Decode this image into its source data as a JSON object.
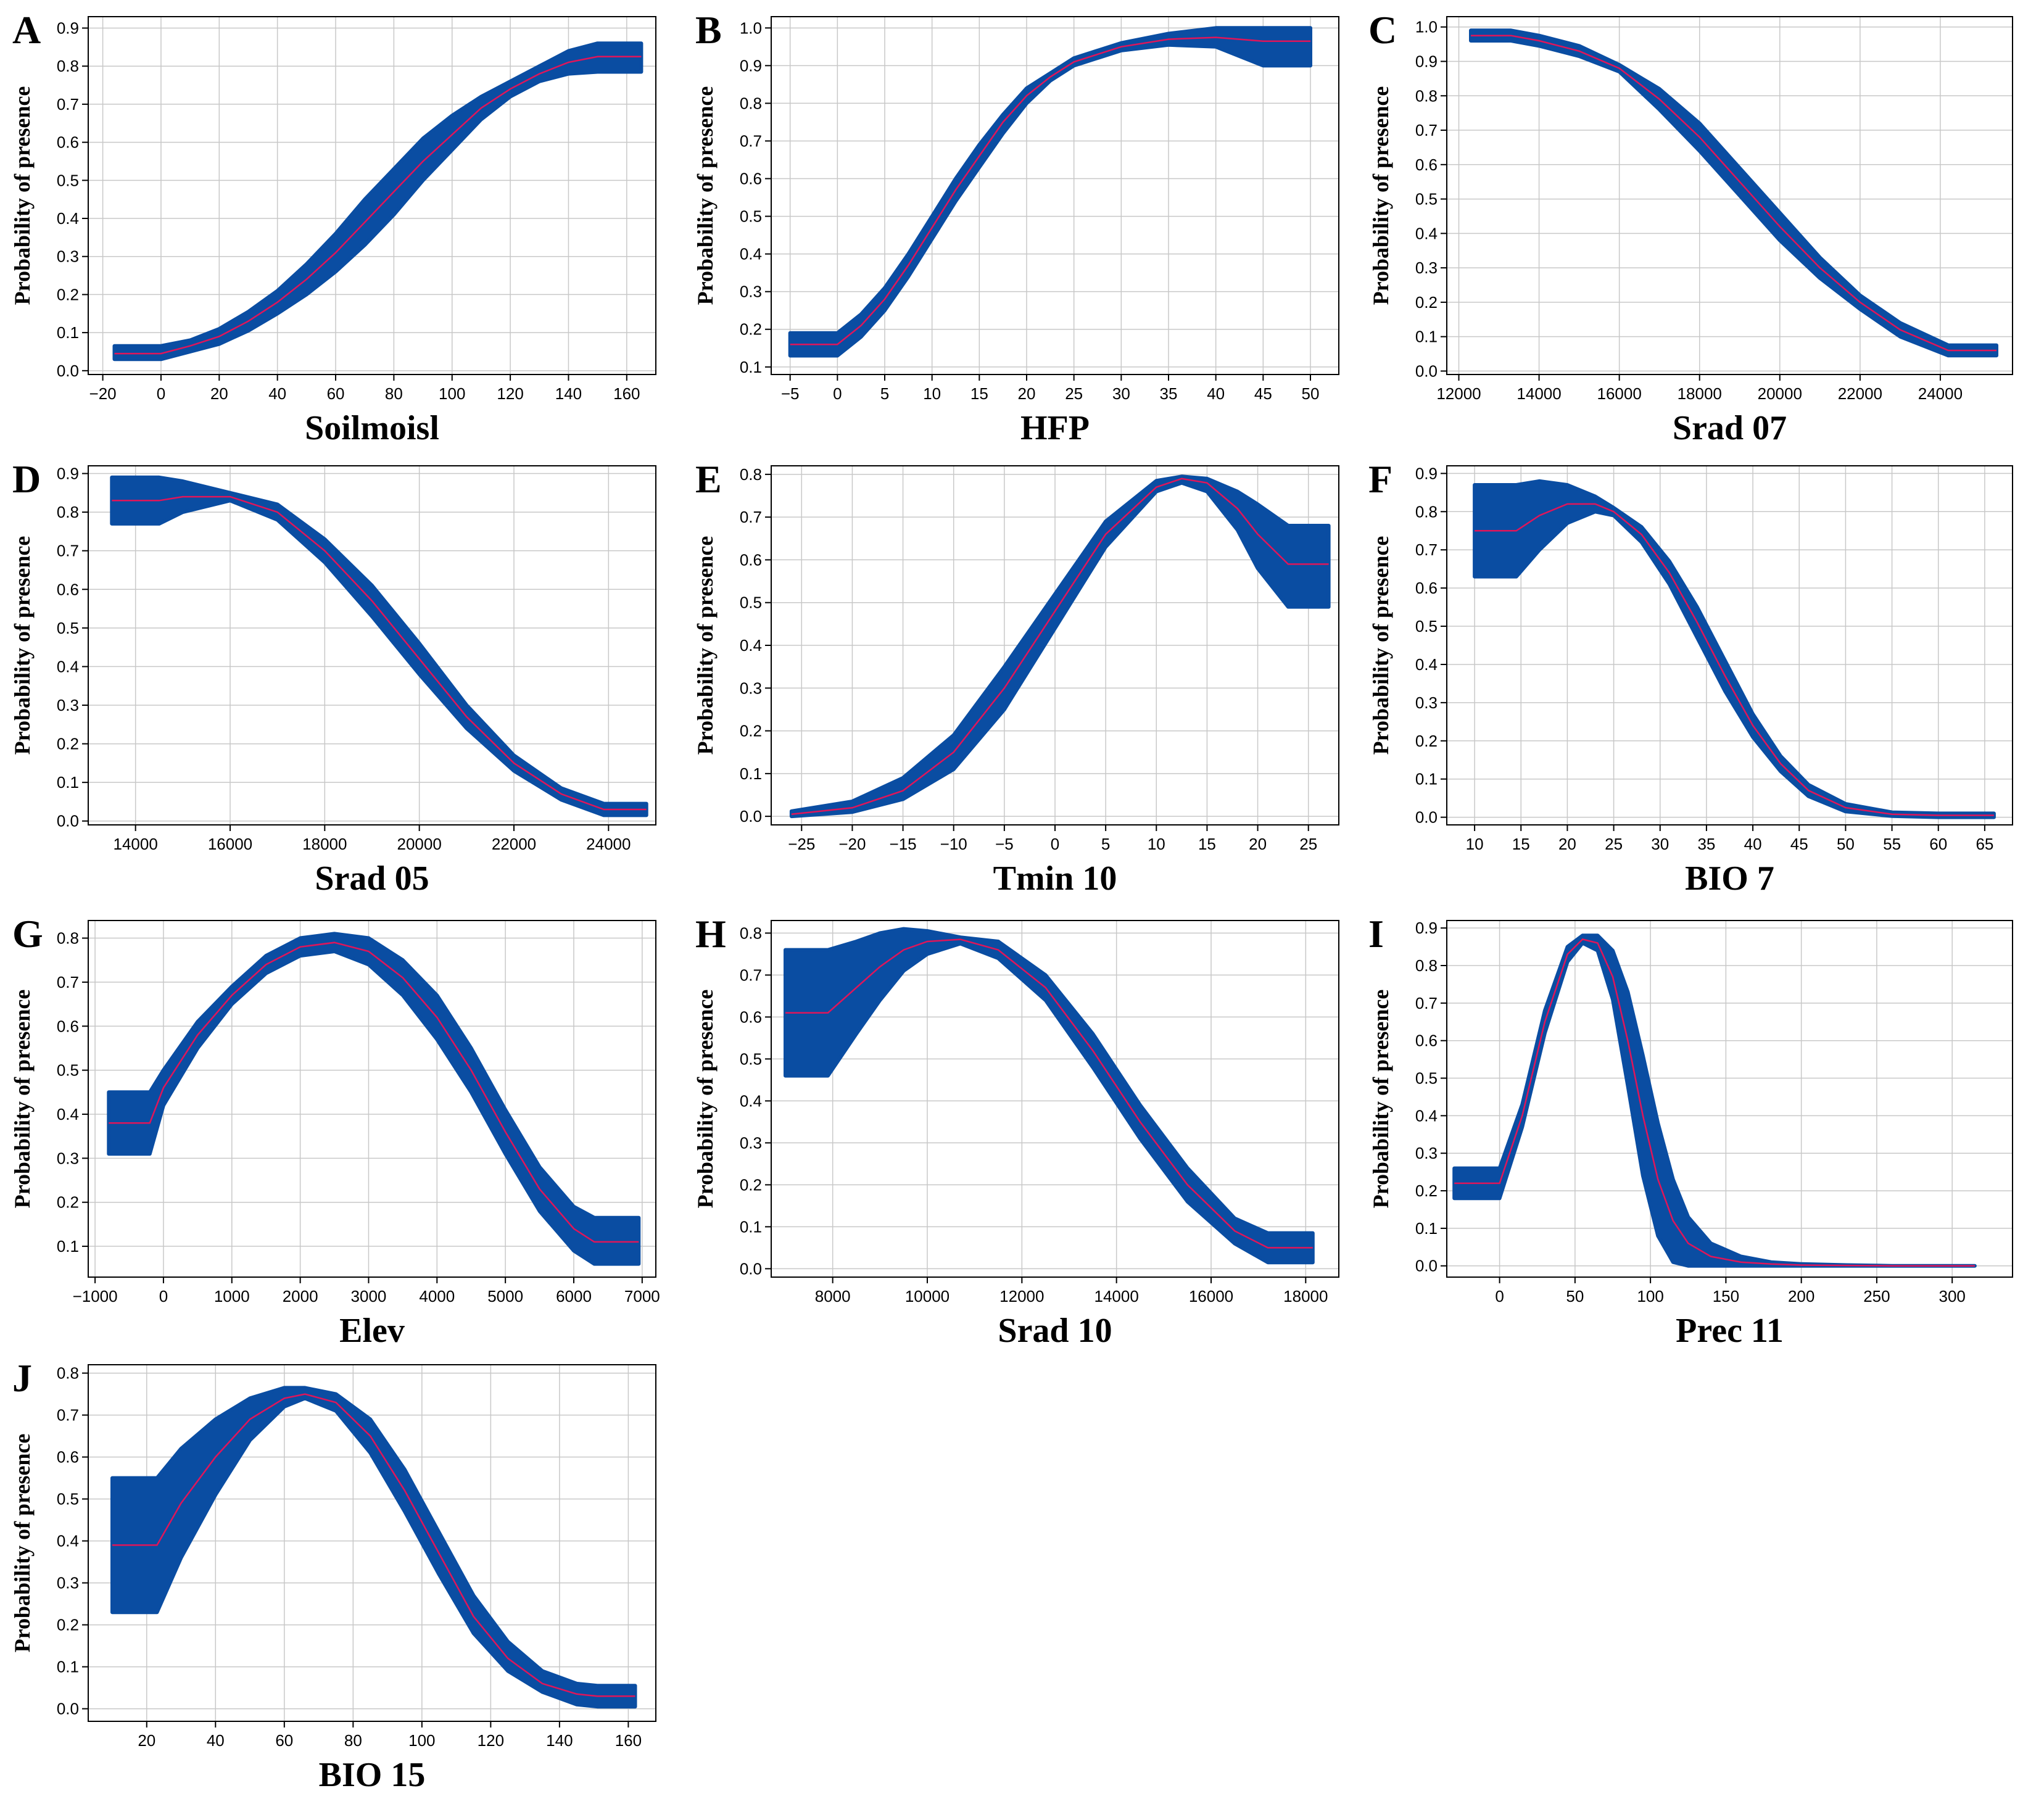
{
  "figure": {
    "band_color": "#0a4da2",
    "line_color": "#e0155a",
    "grid": true
  },
  "chart_data": [
    {
      "panel": "A",
      "type": "area",
      "xlabel": "Soilmoisl",
      "ylabel": "Probability of presence",
      "xlim": [
        -25,
        170
      ],
      "ylim": [
        -0.01,
        0.93
      ],
      "xticks": [
        -20,
        0,
        20,
        40,
        60,
        80,
        100,
        120,
        140,
        160
      ],
      "yticks": [
        0.0,
        0.1,
        0.2,
        0.3,
        0.4,
        0.5,
        0.6,
        0.7,
        0.8,
        0.9
      ],
      "ytick_decimals": 1,
      "x": [
        -16,
        0,
        10,
        20,
        30,
        40,
        50,
        60,
        70,
        80,
        90,
        100,
        110,
        120,
        130,
        140,
        150,
        165
      ],
      "mean": [
        0.045,
        0.045,
        0.065,
        0.09,
        0.13,
        0.18,
        0.24,
        0.31,
        0.39,
        0.47,
        0.55,
        0.62,
        0.69,
        0.74,
        0.78,
        0.81,
        0.825,
        0.825
      ],
      "lower": [
        0.03,
        0.03,
        0.05,
        0.07,
        0.105,
        0.15,
        0.2,
        0.26,
        0.33,
        0.41,
        0.5,
        0.58,
        0.66,
        0.72,
        0.76,
        0.78,
        0.785,
        0.785
      ],
      "upper": [
        0.065,
        0.065,
        0.08,
        0.11,
        0.155,
        0.21,
        0.28,
        0.36,
        0.45,
        0.53,
        0.61,
        0.67,
        0.72,
        0.76,
        0.8,
        0.84,
        0.86,
        0.86
      ]
    },
    {
      "panel": "B",
      "type": "area",
      "xlabel": "HFP",
      "ylabel": "Probability of presence",
      "xlim": [
        -7,
        53
      ],
      "ylim": [
        0.08,
        1.03
      ],
      "xticks": [
        -5,
        0,
        5,
        10,
        15,
        20,
        25,
        30,
        35,
        40,
        45,
        50
      ],
      "yticks": [
        0.1,
        0.2,
        0.3,
        0.4,
        0.5,
        0.6,
        0.7,
        0.8,
        0.9,
        1.0
      ],
      "ytick_decimals": 1,
      "x": [
        -5,
        0,
        2.5,
        5,
        7.5,
        10,
        12.5,
        15,
        17.5,
        20,
        22.5,
        25,
        30,
        35,
        40,
        45,
        50
      ],
      "mean": [
        0.16,
        0.16,
        0.21,
        0.28,
        0.37,
        0.47,
        0.57,
        0.66,
        0.75,
        0.82,
        0.87,
        0.91,
        0.95,
        0.97,
        0.975,
        0.965,
        0.965
      ],
      "lower": [
        0.13,
        0.13,
        0.18,
        0.25,
        0.34,
        0.44,
        0.54,
        0.63,
        0.72,
        0.8,
        0.86,
        0.9,
        0.94,
        0.955,
        0.95,
        0.9,
        0.9
      ],
      "upper": [
        0.19,
        0.19,
        0.24,
        0.31,
        0.4,
        0.5,
        0.6,
        0.69,
        0.77,
        0.84,
        0.88,
        0.92,
        0.96,
        0.985,
        1.0,
        1.0,
        1.0
      ]
    },
    {
      "panel": "C",
      "type": "area",
      "xlabel": "Srad 07",
      "ylabel": "Probability of presence",
      "xlim": [
        11700,
        25800
      ],
      "ylim": [
        -0.01,
        1.03
      ],
      "xticks": [
        12000,
        14000,
        16000,
        18000,
        20000,
        22000,
        24000
      ],
      "yticks": [
        0.0,
        0.1,
        0.2,
        0.3,
        0.4,
        0.5,
        0.6,
        0.7,
        0.8,
        0.9,
        1.0
      ],
      "ytick_decimals": 1,
      "x": [
        12300,
        13300,
        14000,
        15000,
        16000,
        17000,
        18000,
        19000,
        20000,
        21000,
        22000,
        23000,
        24200,
        25400
      ],
      "mean": [
        0.975,
        0.975,
        0.96,
        0.93,
        0.88,
        0.79,
        0.68,
        0.55,
        0.42,
        0.3,
        0.2,
        0.12,
        0.06,
        0.06
      ],
      "lower": [
        0.96,
        0.96,
        0.945,
        0.915,
        0.87,
        0.76,
        0.64,
        0.51,
        0.38,
        0.27,
        0.18,
        0.1,
        0.045,
        0.045
      ],
      "upper": [
        0.99,
        0.99,
        0.975,
        0.945,
        0.89,
        0.82,
        0.72,
        0.59,
        0.46,
        0.33,
        0.22,
        0.14,
        0.075,
        0.075
      ]
    },
    {
      "panel": "D",
      "type": "area",
      "xlabel": "Srad 05",
      "ylabel": "Probability of presence",
      "xlim": [
        13000,
        25000
      ],
      "ylim": [
        -0.01,
        0.92
      ],
      "xticks": [
        14000,
        16000,
        18000,
        20000,
        22000,
        24000
      ],
      "yticks": [
        0.0,
        0.1,
        0.2,
        0.3,
        0.4,
        0.5,
        0.6,
        0.7,
        0.8,
        0.9
      ],
      "ytick_decimals": 1,
      "x": [
        13500,
        14500,
        15000,
        16000,
        17000,
        18000,
        19000,
        20000,
        21000,
        22000,
        23000,
        23900,
        24800
      ],
      "mean": [
        0.83,
        0.83,
        0.84,
        0.84,
        0.8,
        0.7,
        0.57,
        0.42,
        0.27,
        0.15,
        0.07,
        0.03,
        0.03
      ],
      "lower": [
        0.77,
        0.77,
        0.8,
        0.83,
        0.78,
        0.67,
        0.53,
        0.38,
        0.24,
        0.13,
        0.055,
        0.015,
        0.015
      ],
      "upper": [
        0.89,
        0.89,
        0.88,
        0.85,
        0.82,
        0.73,
        0.61,
        0.46,
        0.3,
        0.17,
        0.085,
        0.045,
        0.045
      ]
    },
    {
      "panel": "E",
      "type": "area",
      "xlabel": "Tmin 10",
      "ylabel": "Probability of presence",
      "xlim": [
        -28,
        28
      ],
      "ylim": [
        -0.02,
        0.82
      ],
      "xticks": [
        -25,
        -20,
        -15,
        -10,
        -5,
        0,
        5,
        10,
        15,
        20,
        25
      ],
      "yticks": [
        0.0,
        0.1,
        0.2,
        0.3,
        0.4,
        0.5,
        0.6,
        0.7,
        0.8
      ],
      "ytick_decimals": 1,
      "x": [
        -26,
        -20,
        -15,
        -10,
        -5,
        0,
        5,
        10,
        12.5,
        15,
        18,
        20,
        23,
        27
      ],
      "mean": [
        0.005,
        0.02,
        0.06,
        0.15,
        0.3,
        0.48,
        0.66,
        0.77,
        0.79,
        0.78,
        0.72,
        0.66,
        0.59,
        0.59
      ],
      "lower": [
        0.0,
        0.01,
        0.04,
        0.11,
        0.25,
        0.44,
        0.63,
        0.76,
        0.78,
        0.76,
        0.67,
        0.58,
        0.49,
        0.49
      ],
      "upper": [
        0.012,
        0.035,
        0.09,
        0.19,
        0.35,
        0.52,
        0.69,
        0.785,
        0.795,
        0.79,
        0.76,
        0.73,
        0.68,
        0.68
      ]
    },
    {
      "panel": "F",
      "type": "area",
      "xlabel": "BIO 7",
      "ylabel": "Probability of presence",
      "xlim": [
        7,
        68
      ],
      "ylim": [
        -0.02,
        0.92
      ],
      "xticks": [
        10,
        15,
        20,
        25,
        30,
        35,
        40,
        45,
        50,
        55,
        60,
        65
      ],
      "yticks": [
        0.0,
        0.1,
        0.2,
        0.3,
        0.4,
        0.5,
        0.6,
        0.7,
        0.8,
        0.9
      ],
      "ytick_decimals": 1,
      "x": [
        10,
        14.5,
        17,
        20,
        23,
        25,
        28,
        31,
        34,
        37,
        40,
        43,
        46,
        50,
        55,
        60,
        66
      ],
      "mean": [
        0.75,
        0.75,
        0.79,
        0.82,
        0.82,
        0.8,
        0.74,
        0.64,
        0.51,
        0.37,
        0.24,
        0.14,
        0.07,
        0.025,
        0.008,
        0.005,
        0.005
      ],
      "lower": [
        0.63,
        0.63,
        0.7,
        0.77,
        0.8,
        0.79,
        0.72,
        0.61,
        0.47,
        0.33,
        0.21,
        0.12,
        0.055,
        0.015,
        0.003,
        0.0,
        0.0
      ],
      "upper": [
        0.87,
        0.87,
        0.88,
        0.87,
        0.84,
        0.81,
        0.76,
        0.67,
        0.55,
        0.41,
        0.27,
        0.16,
        0.085,
        0.035,
        0.013,
        0.01,
        0.01
      ]
    },
    {
      "panel": "G",
      "type": "area",
      "xlabel": "Elev",
      "ylabel": "Probability of presence",
      "xlim": [
        -1100,
        7200
      ],
      "ylim": [
        0.03,
        0.84
      ],
      "xticks": [
        -1000,
        0,
        1000,
        2000,
        3000,
        4000,
        5000,
        6000,
        7000
      ],
      "yticks": [
        0.1,
        0.2,
        0.3,
        0.4,
        0.5,
        0.6,
        0.7,
        0.8
      ],
      "ytick_decimals": 1,
      "x": [
        -800,
        -200,
        0,
        500,
        1000,
        1500,
        2000,
        2500,
        3000,
        3500,
        4000,
        4500,
        5000,
        5500,
        6000,
        6300,
        6950
      ],
      "mean": [
        0.38,
        0.38,
        0.46,
        0.58,
        0.67,
        0.74,
        0.78,
        0.79,
        0.77,
        0.71,
        0.62,
        0.5,
        0.36,
        0.23,
        0.14,
        0.11,
        0.11
      ],
      "lower": [
        0.31,
        0.31,
        0.42,
        0.55,
        0.65,
        0.72,
        0.76,
        0.77,
        0.74,
        0.67,
        0.57,
        0.45,
        0.31,
        0.18,
        0.09,
        0.06,
        0.06
      ],
      "upper": [
        0.45,
        0.45,
        0.5,
        0.61,
        0.69,
        0.76,
        0.8,
        0.81,
        0.8,
        0.75,
        0.67,
        0.55,
        0.41,
        0.28,
        0.19,
        0.165,
        0.165
      ]
    },
    {
      "panel": "H",
      "type": "area",
      "xlabel": "Srad 10",
      "ylabel": "Probability of presence",
      "xlim": [
        6700,
        18700
      ],
      "ylim": [
        -0.02,
        0.83
      ],
      "xticks": [
        8000,
        10000,
        12000,
        14000,
        16000,
        18000
      ],
      "yticks": [
        0.0,
        0.1,
        0.2,
        0.3,
        0.4,
        0.5,
        0.6,
        0.7,
        0.8
      ],
      "ytick_decimals": 1,
      "x": [
        7000,
        7900,
        8500,
        9000,
        9500,
        10000,
        10700,
        11500,
        12500,
        13500,
        14500,
        15500,
        16500,
        17200,
        18150
      ],
      "mean": [
        0.61,
        0.61,
        0.67,
        0.72,
        0.76,
        0.78,
        0.785,
        0.76,
        0.67,
        0.52,
        0.35,
        0.2,
        0.09,
        0.05,
        0.05
      ],
      "lower": [
        0.46,
        0.46,
        0.56,
        0.64,
        0.71,
        0.75,
        0.775,
        0.74,
        0.64,
        0.48,
        0.31,
        0.16,
        0.06,
        0.015,
        0.015
      ],
      "upper": [
        0.76,
        0.76,
        0.78,
        0.8,
        0.81,
        0.805,
        0.79,
        0.78,
        0.7,
        0.56,
        0.39,
        0.24,
        0.12,
        0.085,
        0.085
      ]
    },
    {
      "panel": "I",
      "type": "area",
      "xlabel": "Prec 11",
      "ylabel": "Probability of presence",
      "xlim": [
        -35,
        340
      ],
      "ylim": [
        -0.03,
        0.92
      ],
      "xticks": [
        0,
        50,
        100,
        150,
        200,
        250,
        300
      ],
      "yticks": [
        0.0,
        0.1,
        0.2,
        0.3,
        0.4,
        0.5,
        0.6,
        0.7,
        0.8,
        0.9
      ],
      "ytick_decimals": 1,
      "x": [
        -30,
        0,
        15,
        30,
        45,
        55,
        65,
        75,
        85,
        95,
        105,
        115,
        125,
        140,
        160,
        180,
        200,
        230,
        260,
        315
      ],
      "mean": [
        0.22,
        0.22,
        0.4,
        0.65,
        0.83,
        0.87,
        0.86,
        0.77,
        0.6,
        0.4,
        0.23,
        0.12,
        0.06,
        0.025,
        0.01,
        0.005,
        0.002,
        0.001,
        0.0,
        0.0
      ],
      "lower": [
        0.18,
        0.18,
        0.37,
        0.62,
        0.81,
        0.86,
        0.84,
        0.71,
        0.48,
        0.24,
        0.08,
        0.01,
        0.0,
        0.0,
        0.0,
        0.0,
        0.0,
        0.0,
        0.0,
        0.0
      ],
      "upper": [
        0.26,
        0.26,
        0.43,
        0.68,
        0.85,
        0.88,
        0.88,
        0.84,
        0.73,
        0.56,
        0.38,
        0.23,
        0.13,
        0.06,
        0.025,
        0.01,
        0.005,
        0.002,
        0.0,
        0.0
      ]
    },
    {
      "panel": "J",
      "type": "area",
      "xlabel": "BIO 15",
      "ylabel": "Probability of presence",
      "xlim": [
        3,
        168
      ],
      "ylim": [
        -0.03,
        0.82
      ],
      "xticks": [
        20,
        40,
        60,
        80,
        100,
        120,
        140,
        160
      ],
      "yticks": [
        0.0,
        0.1,
        0.2,
        0.3,
        0.4,
        0.5,
        0.6,
        0.7,
        0.8
      ],
      "ytick_decimals": 1,
      "x": [
        10,
        23,
        30,
        40,
        50,
        60,
        66,
        75,
        85,
        95,
        105,
        115,
        125,
        135,
        145,
        151,
        162
      ],
      "mean": [
        0.39,
        0.39,
        0.49,
        0.6,
        0.69,
        0.74,
        0.75,
        0.73,
        0.65,
        0.52,
        0.37,
        0.22,
        0.12,
        0.06,
        0.035,
        0.03,
        0.03
      ],
      "lower": [
        0.23,
        0.23,
        0.36,
        0.51,
        0.64,
        0.72,
        0.74,
        0.71,
        0.61,
        0.47,
        0.32,
        0.18,
        0.09,
        0.04,
        0.01,
        0.005,
        0.005
      ],
      "upper": [
        0.55,
        0.55,
        0.62,
        0.69,
        0.74,
        0.765,
        0.765,
        0.75,
        0.69,
        0.57,
        0.42,
        0.27,
        0.16,
        0.09,
        0.06,
        0.055,
        0.055
      ]
    }
  ]
}
